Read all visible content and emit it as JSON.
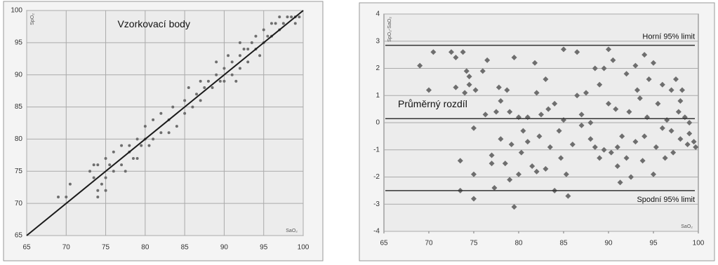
{
  "chart_data": [
    {
      "type": "scatter",
      "marker": "circle",
      "color": "#6e6e6e",
      "grid": "both",
      "annotation": "Vzorkovací body",
      "x_label": "SaO₂",
      "y_label": "SpO₂",
      "xlim": [
        65,
        100
      ],
      "ylim": [
        65,
        100
      ],
      "xticks": [
        65,
        70,
        75,
        80,
        85,
        90,
        95,
        100
      ],
      "yticks": [
        65,
        70,
        75,
        80,
        85,
        90,
        95,
        100
      ],
      "fit_line": {
        "x": [
          65,
          100
        ],
        "y": [
          65,
          100
        ],
        "color": "#1a1a1a"
      },
      "x": [
        69,
        70,
        70.5,
        73,
        73.5,
        73.5,
        74,
        74,
        74,
        74.5,
        75,
        75,
        75,
        75.5,
        76,
        76,
        77,
        77,
        77.5,
        78,
        78,
        78.5,
        79,
        79,
        79.5,
        80,
        80,
        80.5,
        81,
        81,
        82,
        82,
        83,
        83,
        83.5,
        84,
        85,
        85,
        85.5,
        86,
        86.5,
        87,
        87,
        87.5,
        88,
        88.5,
        89,
        89,
        89.5,
        90,
        90,
        90.5,
        91,
        91,
        91.5,
        92,
        92,
        92,
        92.5,
        93,
        93,
        93.5,
        94,
        94,
        94.5,
        95,
        95,
        95.5,
        96,
        96,
        96.5,
        97,
        97,
        97.5,
        98,
        98.5,
        99,
        99,
        99.5
      ],
      "y": [
        71,
        71,
        73,
        75,
        74,
        76,
        71,
        72,
        76,
        73,
        72,
        74,
        77,
        76,
        75,
        78,
        76,
        79,
        75,
        78,
        79,
        77,
        80,
        77,
        79,
        82,
        80,
        79,
        80,
        83,
        81,
        84,
        81,
        83,
        85,
        82,
        86,
        84,
        88,
        85,
        87,
        89,
        86,
        88,
        89,
        88,
        90,
        92,
        89,
        91,
        89,
        93,
        90,
        92,
        89,
        93,
        91,
        95,
        94,
        94,
        92,
        95,
        94,
        96,
        93,
        97,
        95,
        96,
        96,
        98,
        98,
        97,
        99,
        98,
        99,
        99,
        98,
        99,
        99
      ]
    },
    {
      "type": "scatter",
      "marker": "diamond",
      "color": "#6e6e6e",
      "grid": "y",
      "x_label": "SaO₂",
      "y_label": "SpO₂-SaO₂",
      "xlim": [
        65,
        100
      ],
      "ylim": [
        -4,
        4
      ],
      "xticks": [
        65,
        70,
        75,
        80,
        85,
        90,
        95,
        100
      ],
      "yticks": [
        -4,
        -3,
        -2,
        -1,
        0,
        1,
        2,
        3,
        4
      ],
      "reference_lines": [
        {
          "label": "Horní 95% limit",
          "value": 2.85
        },
        {
          "label": "Průměrný rozdíl",
          "value": 0.15
        },
        {
          "label": "Spodní 95% limit",
          "value": -2.5
        }
      ],
      "x": [
        69,
        70,
        70.5,
        72.5,
        73,
        73,
        73.5,
        73.5,
        73.8,
        74,
        74.2,
        74.5,
        74.5,
        75,
        75,
        75,
        75.2,
        76,
        76.3,
        76.5,
        77,
        77,
        77.3,
        77.5,
        77.8,
        78,
        78,
        78.5,
        78.7,
        79,
        79,
        79.2,
        79.5,
        79.5,
        80,
        80,
        80.3,
        80.5,
        81,
        81,
        81.5,
        81.8,
        82,
        82,
        82.3,
        82.5,
        83,
        83,
        83.3,
        83.5,
        84,
        84,
        84.5,
        84.7,
        85,
        85,
        85.3,
        85.5,
        86,
        86.5,
        86.5,
        87,
        87,
        87.5,
        88,
        88,
        88.5,
        88.5,
        89,
        89,
        89.5,
        89.5,
        90,
        90,
        90.3,
        90.5,
        90.8,
        91,
        91,
        91.3,
        91.5,
        92,
        92,
        92.3,
        92.5,
        93,
        93,
        93.2,
        93.5,
        93.8,
        94,
        94,
        94.3,
        94.5,
        95,
        95,
        95.3,
        95.5,
        96,
        96,
        96.3,
        96.5,
        97,
        97,
        97.2,
        97.5,
        97.8,
        98,
        98,
        98.2,
        98.5,
        98.8,
        99,
        99,
        99.5,
        99.7
      ],
      "y": [
        2.1,
        1.2,
        2.6,
        2.6,
        1.3,
        2.4,
        -1.4,
        -2.5,
        2.6,
        1.1,
        1.9,
        1.7,
        1.4,
        -2.8,
        -1.9,
        -0.2,
        1.2,
        1.9,
        0.3,
        2.3,
        -1.2,
        -1.5,
        -2.4,
        0.4,
        1.3,
        -0.6,
        0.8,
        -1.5,
        1.2,
        -2.1,
        0.4,
        -0.8,
        -3.1,
        2.4,
        -1.9,
        0.2,
        -1.1,
        -0.3,
        -0.7,
        0.2,
        -1.6,
        2.2,
        1.1,
        -1.8,
        -0.5,
        0.3,
        -1.7,
        1.6,
        0.5,
        -0.9,
        -2.5,
        0.7,
        -0.3,
        -1.3,
        2.7,
        0.1,
        -1.9,
        -2.7,
        -0.8,
        2.6,
        1.0,
        -0.1,
        0.3,
        1.1,
        -0.6,
        0.0,
        2.0,
        -0.9,
        1.4,
        -1.3,
        2.0,
        -1.0,
        2.7,
        0.7,
        -1.1,
        2.3,
        0.5,
        -0.9,
        -1.6,
        -2.2,
        -0.5,
        1.8,
        -1.3,
        0.4,
        -2.0,
        2.1,
        -0.7,
        1.2,
        0.9,
        -1.4,
        2.5,
        -0.5,
        0.2,
        1.6,
        -1.9,
        2.2,
        -0.9,
        0.7,
        -0.2,
        1.4,
        -1.3,
        0.1,
        1.2,
        -0.3,
        -1.1,
        1.6,
        0.4,
        0.8,
        -0.6,
        1.2,
        0.2,
        -0.8,
        0.0,
        -0.4,
        -0.7,
        -0.9
      ]
    }
  ]
}
